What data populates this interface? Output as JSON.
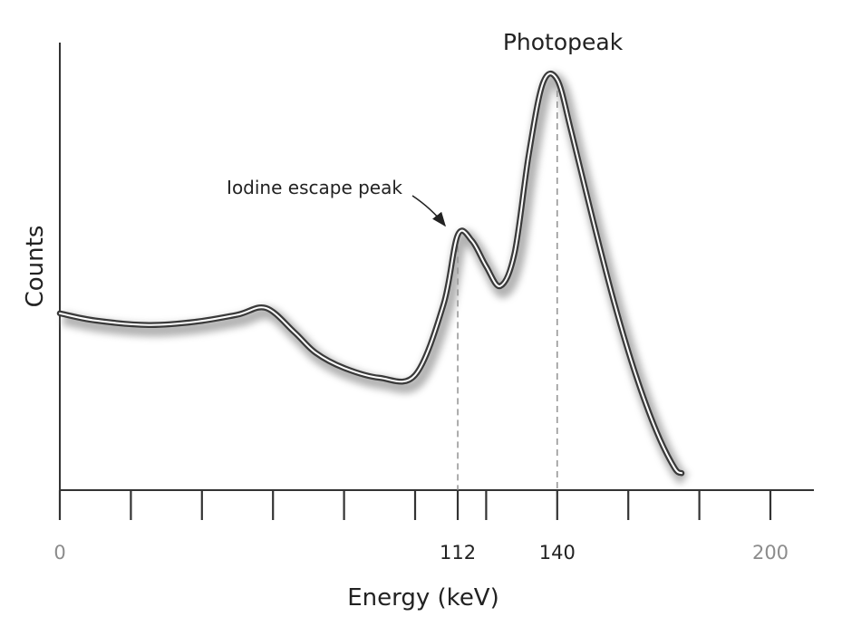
{
  "colors": {
    "curve": "#3a3a3a",
    "curve_highlight": "#ffffff",
    "shadow": "#9a9a9a",
    "axis": "#333333",
    "guide": "#8a8a8a",
    "edge_tick_label": "#8c8c8c",
    "mid_tick_label": "#222222"
  },
  "chart_data": {
    "type": "line",
    "title": "",
    "xlabel": "Energy (keV)",
    "ylabel": "Counts",
    "xlim": [
      0,
      212
    ],
    "ylim": [
      0,
      100
    ],
    "grid": false,
    "legend": "none",
    "x_tick_positions": [
      0,
      20,
      40,
      60,
      80,
      100,
      112,
      120,
      140,
      160,
      180,
      200
    ],
    "x_tick_labels": [
      {
        "x": 0,
        "text": "0",
        "style": "edge"
      },
      {
        "x": 112,
        "text": "112",
        "style": "mid"
      },
      {
        "x": 140,
        "text": "140",
        "style": "mid"
      },
      {
        "x": 200,
        "text": "200",
        "style": "edge"
      }
    ],
    "series": [
      {
        "x": [
          0,
          10,
          25,
          38,
          50,
          58,
          66,
          72,
          80,
          90,
          100,
          108,
          112,
          116,
          120,
          124,
          128,
          132,
          136,
          140,
          144,
          150,
          156,
          162,
          168,
          173,
          175
        ],
        "y": [
          39.5,
          37.9,
          36.9,
          37.6,
          39.2,
          40.7,
          35.3,
          30.7,
          27.3,
          25.1,
          25.7,
          41.5,
          57.0,
          55.7,
          50.0,
          45.6,
          53.0,
          75.0,
          91.0,
          91.7,
          80.0,
          60.5,
          42.0,
          26.0,
          13.0,
          5.0,
          3.8
        ]
      }
    ],
    "guides": [
      {
        "x": 112,
        "y": 57.0
      },
      {
        "x": 140,
        "y": 91.7
      }
    ],
    "annotations": [
      {
        "text": "Photopeak",
        "x": 140,
        "y": 91.7
      },
      {
        "text": "Iodine escape peak",
        "x": 112,
        "y": 57.0,
        "arrow": true
      }
    ]
  }
}
